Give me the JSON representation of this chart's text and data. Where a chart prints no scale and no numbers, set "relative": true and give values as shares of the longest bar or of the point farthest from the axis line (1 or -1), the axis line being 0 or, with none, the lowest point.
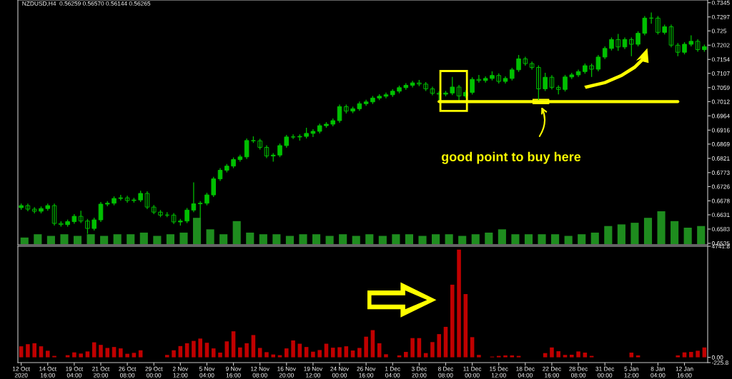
{
  "chart_data": [
    {
      "type": "candlestick",
      "title": "NZDUSD,H4  0.56259 0.56570 0.56144 0.56265",
      "color": "#00c000",
      "tick_labels": "y",
      "categories": [
        null,
        null,
        null,
        null,
        null,
        null,
        null,
        null,
        null,
        null,
        null,
        null,
        null,
        null,
        null,
        null,
        null,
        null,
        null,
        null,
        null,
        null,
        null,
        null,
        null,
        null,
        null,
        null,
        null,
        null,
        null,
        null,
        null,
        null,
        null,
        null,
        null,
        null,
        null,
        null,
        null,
        null,
        null,
        null,
        null,
        null,
        null,
        null,
        null,
        null,
        null,
        null,
        null,
        null,
        null,
        null,
        null,
        null,
        null,
        null,
        null,
        null,
        null,
        null,
        null,
        null,
        null,
        null,
        null,
        null,
        null,
        null,
        null,
        null,
        null,
        null,
        null,
        null,
        null,
        null,
        null,
        null,
        null,
        null,
        null,
        null,
        null,
        null,
        null,
        null,
        null,
        null,
        null,
        null,
        null,
        null,
        null,
        null,
        null,
        null,
        null,
        null,
        null,
        null
      ],
      "ohlc": [
        [
          0.6655,
          0.6669,
          0.6648,
          0.6662
        ],
        [
          0.6662,
          0.6669,
          0.6643,
          0.665
        ],
        [
          0.665,
          0.6657,
          0.6636,
          0.6643
        ],
        [
          0.6643,
          0.6659,
          0.6636,
          0.6652
        ],
        [
          0.6652,
          0.6669,
          0.6645,
          0.6662
        ],
        [
          0.6662,
          0.6669,
          0.6595,
          0.6602
        ],
        [
          0.6602,
          0.6609,
          0.6591,
          0.6598
        ],
        [
          0.6598,
          0.6615,
          0.6591,
          0.6608
        ],
        [
          0.6608,
          0.6633,
          0.6601,
          0.6626
        ],
        [
          0.6626,
          0.6645,
          0.6603,
          0.661
        ],
        [
          0.661,
          0.6617,
          0.6567,
          0.6585
        ],
        [
          0.6585,
          0.6621,
          0.6578,
          0.6614
        ],
        [
          0.6614,
          0.6674,
          0.6607,
          0.6667
        ],
        [
          0.6667,
          0.6677,
          0.666,
          0.667
        ],
        [
          0.667,
          0.6693,
          0.6663,
          0.6686
        ],
        [
          0.6686,
          0.6698,
          0.6679,
          0.6688
        ],
        [
          0.6688,
          0.6695,
          0.6672,
          0.6679
        ],
        [
          0.6679,
          0.6688,
          0.6672,
          0.6681
        ],
        [
          0.6681,
          0.6712,
          0.6674,
          0.6703
        ],
        [
          0.6703,
          0.671,
          0.665,
          0.6657
        ],
        [
          0.6657,
          0.6664,
          0.6633,
          0.664
        ],
        [
          0.664,
          0.6647,
          0.6623,
          0.663
        ],
        [
          0.663,
          0.664,
          0.6623,
          0.663
        ],
        [
          0.663,
          0.6637,
          0.66,
          0.6607
        ],
        [
          0.6607,
          0.6617,
          0.6595,
          0.661
        ],
        [
          0.661,
          0.6654,
          0.6603,
          0.6647
        ],
        [
          0.6647,
          0.674,
          0.664,
          0.6668
        ],
        [
          0.6668,
          0.6677,
          0.6615,
          0.667
        ],
        [
          0.667,
          0.6705,
          0.6663,
          0.6698
        ],
        [
          0.6698,
          0.6759,
          0.6691,
          0.6752
        ],
        [
          0.6752,
          0.6788,
          0.6745,
          0.6781
        ],
        [
          0.6781,
          0.6802,
          0.6774,
          0.6795
        ],
        [
          0.6795,
          0.6824,
          0.6788,
          0.6817
        ],
        [
          0.6817,
          0.6833,
          0.681,
          0.6826
        ],
        [
          0.6826,
          0.6888,
          0.6819,
          0.6881
        ],
        [
          0.6881,
          0.6895,
          0.6873,
          0.688
        ],
        [
          0.688,
          0.6887,
          0.6851,
          0.6858
        ],
        [
          0.6858,
          0.6865,
          0.6822,
          0.6829
        ],
        [
          0.6829,
          0.6839,
          0.681,
          0.6832
        ],
        [
          0.6832,
          0.6871,
          0.6825,
          0.6864
        ],
        [
          0.6864,
          0.69,
          0.6857,
          0.6893
        ],
        [
          0.6893,
          0.6902,
          0.6886,
          0.6893
        ],
        [
          0.6893,
          0.6902,
          0.6881,
          0.6895
        ],
        [
          0.6895,
          0.6924,
          0.6888,
          0.6905
        ],
        [
          0.6905,
          0.6919,
          0.6893,
          0.6912
        ],
        [
          0.6912,
          0.6938,
          0.6905,
          0.6931
        ],
        [
          0.6931,
          0.6943,
          0.6924,
          0.6936
        ],
        [
          0.6936,
          0.6955,
          0.6929,
          0.6948
        ],
        [
          0.6948,
          0.7002,
          0.6941,
          0.6995
        ],
        [
          0.6995,
          0.7002,
          0.6972,
          0.698
        ],
        [
          0.698,
          0.6995,
          0.6973,
          0.6988
        ],
        [
          0.6988,
          0.7012,
          0.6981,
          0.7005
        ],
        [
          0.7005,
          0.7018,
          0.6998,
          0.7011
        ],
        [
          0.7011,
          0.7031,
          0.7004,
          0.7024
        ],
        [
          0.7024,
          0.7037,
          0.7017,
          0.703
        ],
        [
          0.703,
          0.7042,
          0.7023,
          0.7035
        ],
        [
          0.7035,
          0.7054,
          0.7028,
          0.7047
        ],
        [
          0.7047,
          0.7066,
          0.704,
          0.7059
        ],
        [
          0.7059,
          0.7074,
          0.7052,
          0.7067
        ],
        [
          0.7067,
          0.7082,
          0.706,
          0.7075
        ],
        [
          0.7075,
          0.7085,
          0.7064,
          0.7071
        ],
        [
          0.7071,
          0.7078,
          0.7048,
          0.7055
        ],
        [
          0.7055,
          0.7062,
          0.7033,
          0.704
        ],
        [
          0.704,
          0.7047,
          0.7017,
          0.7037
        ],
        [
          0.7037,
          0.7048,
          0.703,
          0.7041
        ],
        [
          0.7041,
          0.7095,
          0.7034,
          0.7061
        ],
        [
          0.7061,
          0.7068,
          0.7014,
          0.7031
        ],
        [
          0.7031,
          0.705,
          0.7024,
          0.7043
        ],
        [
          0.7043,
          0.7094,
          0.7036,
          0.7087
        ],
        [
          0.7087,
          0.7102,
          0.7076,
          0.7083
        ],
        [
          0.7083,
          0.7097,
          0.7076,
          0.709
        ],
        [
          0.709,
          0.7114,
          0.7083,
          0.71
        ],
        [
          0.71,
          0.7107,
          0.7073,
          0.708
        ],
        [
          0.708,
          0.7097,
          0.7073,
          0.709
        ],
        [
          0.709,
          0.7126,
          0.7083,
          0.7119
        ],
        [
          0.7119,
          0.7169,
          0.7112,
          0.7156
        ],
        [
          0.7156,
          0.7163,
          0.7133,
          0.714
        ],
        [
          0.714,
          0.7147,
          0.712,
          0.7127
        ],
        [
          0.7127,
          0.7134,
          0.701,
          0.7055
        ],
        [
          0.7055,
          0.7109,
          0.7048,
          0.7094
        ],
        [
          0.7094,
          0.7101,
          0.7053,
          0.706
        ],
        [
          0.706,
          0.7067,
          0.7036,
          0.7053
        ],
        [
          0.7053,
          0.7102,
          0.7046,
          0.7095
        ],
        [
          0.7095,
          0.7109,
          0.7088,
          0.7102
        ],
        [
          0.7102,
          0.712,
          0.7095,
          0.7113
        ],
        [
          0.7113,
          0.714,
          0.7106,
          0.7133
        ],
        [
          0.7133,
          0.714,
          0.7095,
          0.7121
        ],
        [
          0.7121,
          0.7169,
          0.7114,
          0.7162
        ],
        [
          0.7162,
          0.7198,
          0.7155,
          0.7191
        ],
        [
          0.7191,
          0.7228,
          0.7184,
          0.7221
        ],
        [
          0.7221,
          0.724,
          0.7183,
          0.7196
        ],
        [
          0.7196,
          0.7228,
          0.7189,
          0.7221
        ],
        [
          0.7221,
          0.7228,
          0.7165,
          0.7205
        ],
        [
          0.7205,
          0.7249,
          0.7198,
          0.7242
        ],
        [
          0.7242,
          0.73,
          0.7235,
          0.7293
        ],
        [
          0.7293,
          0.7312,
          0.7274,
          0.7293
        ],
        [
          0.7293,
          0.73,
          0.7238,
          0.7245
        ],
        [
          0.7245,
          0.7271,
          0.7238,
          0.7264
        ],
        [
          0.7264,
          0.7271,
          0.7195,
          0.7202
        ],
        [
          0.7202,
          0.7209,
          0.7165,
          0.7178
        ],
        [
          0.7178,
          0.7212,
          0.7171,
          0.7205
        ],
        [
          0.7205,
          0.7235,
          0.7198,
          0.7215
        ],
        [
          0.7215,
          0.7222,
          0.718,
          0.7187
        ],
        [
          0.7187,
          0.7204,
          0.718,
          0.7197
        ]
      ],
      "series": [
        {
          "type": "line",
          "color": "#ffff00",
          "values": [
            null,
            null,
            null,
            null,
            null,
            null,
            null,
            null,
            null,
            null,
            null,
            null,
            null,
            null,
            null,
            null,
            null,
            null,
            null,
            null,
            null,
            null,
            null,
            null,
            null,
            null,
            null,
            null,
            null,
            null,
            null,
            null,
            null,
            null,
            null,
            null,
            null,
            null,
            null,
            null,
            null,
            null,
            null,
            null,
            null,
            null,
            null,
            null,
            null,
            null,
            null,
            null,
            null,
            null,
            null,
            null,
            null,
            null,
            null,
            null,
            null,
            null,
            null,
            0.7012,
            0.7012,
            0.7012,
            0.7012,
            0.7012,
            0.7012,
            0.7012,
            0.7012,
            0.7012,
            0.7012,
            0.7012,
            0.7012,
            0.7012,
            0.7012,
            0.7012,
            0.7012,
            0.7012,
            0.7012,
            0.7012,
            0.7012,
            0.7012,
            0.7012,
            0.7012,
            0.7012,
            0.7012,
            0.7012,
            0.7012,
            0.7012,
            0.7012,
            0.7012,
            0.7012,
            0.7012,
            0.7012,
            0.7012,
            0.7012,
            0.7012,
            0.7012,
            null,
            null,
            null,
            null
          ]
        }
      ],
      "annotations": [
        "good point to buy here"
      ],
      "ylim": [
        0.653,
        0.7354
      ],
      "yticks": [
        0.7345,
        0.7297,
        0.725,
        0.7202,
        0.7154,
        0.7107,
        0.7059,
        0.7012,
        0.6964,
        0.6916,
        0.6869,
        0.6821,
        0.6773,
        0.6726,
        0.6678,
        0.6631,
        0.6583,
        0.6535
      ]
    },
    {
      "type": "bar",
      "relative": true,
      "color": "#1e8c1e",
      "categories": [
        null,
        null,
        null,
        null,
        null,
        null,
        null,
        null,
        null,
        null,
        null,
        null,
        null,
        null,
        null,
        null,
        null,
        null,
        null,
        null,
        null,
        null,
        null,
        null,
        null,
        null,
        null,
        null,
        null,
        null,
        null,
        null,
        null,
        null,
        null,
        null,
        null,
        null,
        null,
        null,
        null,
        null,
        null,
        null,
        null,
        null,
        null,
        null,
        null,
        null,
        null,
        null
      ],
      "values": [
        0.2,
        0.3,
        0.25,
        0.3,
        0.25,
        0.3,
        0.25,
        0.3,
        0.3,
        0.35,
        0.25,
        0.3,
        0.35,
        0.8,
        0.45,
        0.3,
        0.7,
        0.35,
        0.3,
        0.3,
        0.25,
        0.3,
        0.3,
        0.25,
        0.3,
        0.25,
        0.3,
        0.25,
        0.3,
        0.3,
        0.25,
        0.3,
        0.3,
        0.25,
        0.3,
        0.35,
        0.45,
        0.3,
        0.3,
        0.3,
        0.3,
        0.25,
        0.3,
        0.35,
        0.55,
        0.6,
        0.65,
        0.8,
        1.0,
        0.7,
        0.5,
        0.55
      ]
    },
    {
      "type": "bar",
      "color": "#c00000",
      "categories": [
        "12 Oct 2020",
        null,
        null,
        null,
        "14 Oct 16:00",
        null,
        null,
        null,
        "19 Oct 04:00",
        null,
        null,
        null,
        "21 Oct 20:00",
        null,
        null,
        null,
        "26 Oct 08:00",
        null,
        null,
        null,
        "29 Oct 00:00",
        null,
        null,
        null,
        "2 Nov 12:00",
        null,
        null,
        null,
        "5 Nov 04:00",
        null,
        null,
        null,
        "9 Nov 16:00",
        null,
        null,
        null,
        "12 Nov 08:00",
        null,
        null,
        null,
        "16 Nov 20:00",
        null,
        null,
        null,
        "19 Nov 12:00",
        null,
        null,
        null,
        "24 Nov 00:00",
        null,
        null,
        null,
        "26 Nov 16:00",
        null,
        null,
        null,
        "1 Dec 04:00",
        null,
        null,
        null,
        "3 Dec 20:00",
        null,
        null,
        null,
        "8 Dec 08:00",
        null,
        null,
        null,
        "11 Dec 00:00",
        null,
        null,
        null,
        "15 Dec 12:00",
        null,
        null,
        null,
        "18 Dec 04:00",
        null,
        null,
        null,
        "22 Dec 16:00",
        null,
        null,
        null,
        "28 Dec 08:00",
        null,
        null,
        null,
        "31 Dec 00:00",
        null,
        null,
        null,
        "5 Jan 12:00",
        null,
        null,
        null,
        "8 Jan 04:00",
        null,
        null,
        null,
        "12 Jan 16:00",
        null,
        null,
        null
      ],
      "values": [
        470,
        560,
        600,
        470,
        280,
        60,
        0,
        90,
        210,
        160,
        250,
        640,
        530,
        400,
        440,
        380,
        150,
        190,
        300,
        0,
        0,
        0,
        100,
        300,
        480,
        600,
        700,
        800,
        620,
        380,
        200,
        680,
        1110,
        420,
        600,
        950,
        400,
        220,
        120,
        90,
        380,
        720,
        580,
        440,
        240,
        310,
        580,
        410,
        430,
        470,
        290,
        400,
        880,
        1160,
        600,
        130,
        0,
        80,
        230,
        820,
        820,
        180,
        650,
        990,
        1300,
        3100,
        4600,
        2700,
        860,
        100,
        0,
        30,
        60,
        80,
        80,
        60,
        0,
        0,
        0,
        180,
        420,
        260,
        100,
        110,
        250,
        200,
        60,
        0,
        0,
        0,
        0,
        0,
        200,
        80,
        0,
        0,
        0,
        0,
        0,
        80,
        210,
        230,
        280,
        420
      ],
      "ylim": [
        -225.8,
        4741.8
      ],
      "yticks": [
        4741.8,
        {
          "value": 0,
          "label": "0.00"
        },
        -225.8
      ]
    }
  ]
}
